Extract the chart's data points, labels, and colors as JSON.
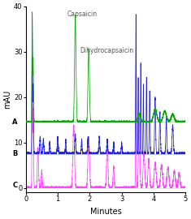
{
  "xlabel": "Minutes",
  "ylabel": "mAU",
  "xlim": [
    0,
    5
  ],
  "ylim": [
    -1,
    40
  ],
  "yticks": [
    0,
    10,
    20,
    30,
    40
  ],
  "xticks": [
    0,
    1,
    2,
    3,
    4,
    5
  ],
  "colors": {
    "A": "#00aa00",
    "B": "#2222dd",
    "C": "#ff44ff"
  },
  "label_A": "A",
  "label_B": "B",
  "label_C": "C",
  "annotation_capsaicin": "Capsaicin",
  "annotation_dihydro": "Dihydrocapsaicin",
  "offsets": {
    "A": 14.5,
    "B": 7.5,
    "C": 0.0
  },
  "peak_scale": {
    "A": 25,
    "B": 8,
    "C": 12
  }
}
